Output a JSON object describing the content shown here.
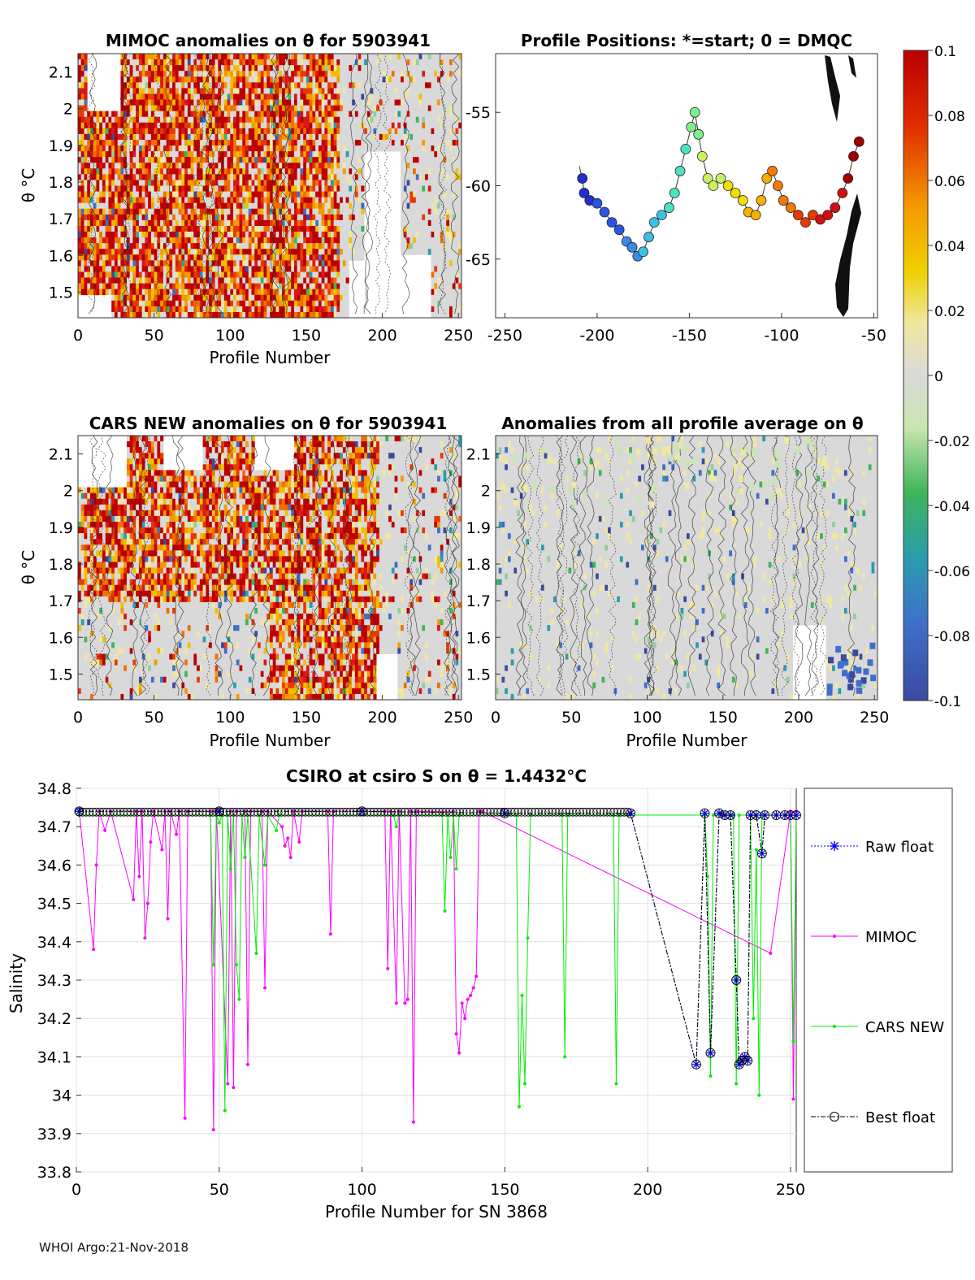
{
  "footer": "WHOI Argo:21-Nov-2018",
  "colors": {
    "magenta": "#ff00ff",
    "green": "#00ee00",
    "blue": "#0000ff",
    "black": "#000000",
    "grid": "#e0e0e0",
    "field_neutral": "#d9d9d9",
    "red": "#c00000"
  },
  "colorbar": {
    "ticks": [
      "0.1",
      "0.08",
      "0.06",
      "0.04",
      "0.02",
      "0",
      "-0.02",
      "-0.04",
      "-0.06",
      "-0.08",
      "-0.1"
    ],
    "range": [
      -0.1,
      0.1
    ]
  },
  "chart_data": [
    {
      "id": "mimoc",
      "type": "heatmap",
      "title": "MIMOC anomalies on θ  for 5903941",
      "xlabel": "Profile Number",
      "ylabel": "θ °C",
      "xlim": [
        0,
        252
      ],
      "ylim": [
        1.43,
        2.15
      ],
      "xticks": [
        "0",
        "50",
        "100",
        "150",
        "200",
        "250"
      ],
      "yticks": [
        "1.5",
        "1.6",
        "1.7",
        "1.8",
        "1.9",
        "2",
        "2.1"
      ]
    },
    {
      "id": "positions",
      "type": "scatter",
      "title": "Profile Positions: *=start; 0 = DMQC",
      "xlim": [
        -255,
        -48
      ],
      "ylim": [
        -69,
        -51
      ],
      "xticks": [
        "-250",
        "-200",
        "-150",
        "-100",
        "-50"
      ],
      "yticks": [
        "-55",
        "-60",
        "-65"
      ],
      "track": [
        [
          -210,
          -58.5
        ],
        [
          -208,
          -59.5
        ],
        [
          -207,
          -60.5
        ],
        [
          -204,
          -61
        ],
        [
          -200,
          -61.2
        ],
        [
          -196,
          -61.8
        ],
        [
          -192,
          -62.5
        ],
        [
          -188,
          -63
        ],
        [
          -184,
          -63.8
        ],
        [
          -181,
          -64.2
        ],
        [
          -178,
          -64.8
        ],
        [
          -175,
          -64.5
        ],
        [
          -172,
          -63.5
        ],
        [
          -169,
          -62.5
        ],
        [
          -165,
          -62
        ],
        [
          -161,
          -61.5
        ],
        [
          -158,
          -60.5
        ],
        [
          -155,
          -59
        ],
        [
          -152,
          -57.5
        ],
        [
          -149,
          -56
        ],
        [
          -147,
          -55
        ],
        [
          -145,
          -56.5
        ],
        [
          -143,
          -58
        ],
        [
          -140,
          -59.5
        ],
        [
          -137,
          -60
        ],
        [
          -133,
          -59.5
        ],
        [
          -129,
          -60
        ],
        [
          -125,
          -60.5
        ],
        [
          -121,
          -61
        ],
        [
          -118,
          -61.8
        ],
        [
          -114,
          -62
        ],
        [
          -111,
          -61
        ],
        [
          -108,
          -59.5
        ],
        [
          -105,
          -59
        ],
        [
          -102,
          -60
        ],
        [
          -99,
          -61
        ],
        [
          -95,
          -61.5
        ],
        [
          -91,
          -62
        ],
        [
          -87,
          -62.5
        ],
        [
          -83,
          -62
        ],
        [
          -79,
          -62.3
        ],
        [
          -75,
          -62
        ],
        [
          -71,
          -61.5
        ],
        [
          -67,
          -60.5
        ],
        [
          -64,
          -59.5
        ],
        [
          -61,
          -58
        ],
        [
          -58,
          -57
        ]
      ]
    },
    {
      "id": "cars",
      "type": "heatmap",
      "title": "CARS NEW anomalies on θ for 5903941",
      "xlabel": "Profile Number",
      "ylabel": "θ °C",
      "xlim": [
        0,
        252
      ],
      "ylim": [
        1.43,
        2.15
      ],
      "xticks": [
        "0",
        "50",
        "100",
        "150",
        "200",
        "250"
      ],
      "yticks": [
        "1.5",
        "1.6",
        "1.7",
        "1.8",
        "1.9",
        "2",
        "2.1"
      ]
    },
    {
      "id": "avg",
      "type": "heatmap",
      "title": "Anomalies from all profile average on θ",
      "xlabel": "Profile Number",
      "xlim": [
        0,
        252
      ],
      "ylim": [
        1.43,
        2.15
      ],
      "xticks": [
        "0",
        "50",
        "100",
        "150",
        "200",
        "250"
      ],
      "yticks": [
        "1.5",
        "1.6",
        "1.7",
        "1.8",
        "1.9",
        "2",
        "2.1"
      ]
    },
    {
      "id": "salinity",
      "type": "line",
      "title": "CSIRO at csiro S on θ = 1.4432°C",
      "xlabel": "Profile Number for SN 3868",
      "ylabel": "Salinity",
      "xlim": [
        0,
        252
      ],
      "ylim": [
        33.8,
        34.8
      ],
      "xticks": [
        "0",
        "50",
        "100",
        "150",
        "200",
        "250"
      ],
      "yticks": [
        "34.8",
        "34.7",
        "34.6",
        "34.5",
        "34.4",
        "34.3",
        "34.2",
        "34.1",
        "34",
        "33.9",
        "33.8"
      ],
      "legend": [
        "Raw float",
        "MIMOC",
        "CARS NEW",
        "Best float"
      ],
      "legend_position": "right",
      "grid": true,
      "series": [
        {
          "name": "MIMOC",
          "points": [
            [
              1,
              34.74
            ],
            [
              6,
              34.38
            ],
            [
              7,
              34.6
            ],
            [
              8,
              34.74
            ],
            [
              10,
              34.69
            ],
            [
              12,
              34.74
            ],
            [
              20,
              34.51
            ],
            [
              21,
              34.74
            ],
            [
              22,
              34.57
            ],
            [
              23,
              34.74
            ],
            [
              24,
              34.41
            ],
            [
              25,
              34.5
            ],
            [
              26,
              34.66
            ],
            [
              27,
              34.74
            ],
            [
              30,
              34.64
            ],
            [
              31,
              34.74
            ],
            [
              32,
              34.46
            ],
            [
              33,
              34.74
            ],
            [
              35,
              34.68
            ],
            [
              36,
              34.74
            ],
            [
              38,
              33.94
            ],
            [
              39,
              34.74
            ],
            [
              47,
              34.74
            ],
            [
              48,
              33.91
            ],
            [
              49,
              34.74
            ],
            [
              53,
              34.03
            ],
            [
              54,
              34.74
            ],
            [
              55,
              34.02
            ],
            [
              56,
              34.74
            ],
            [
              59,
              34.74
            ],
            [
              60,
              34.08
            ],
            [
              61,
              34.74
            ],
            [
              65,
              34.74
            ],
            [
              66,
              34.28
            ],
            [
              67,
              34.74
            ],
            [
              72,
              34.7
            ],
            [
              73,
              34.65
            ],
            [
              74,
              34.67
            ],
            [
              75,
              34.62
            ],
            [
              76,
              34.74
            ],
            [
              78,
              34.66
            ],
            [
              79,
              34.74
            ],
            [
              88,
              34.74
            ],
            [
              89,
              34.42
            ],
            [
              90,
              34.74
            ],
            [
              108,
              34.74
            ],
            [
              109,
              34.33
            ],
            [
              110,
              34.74
            ],
            [
              112,
              34.24
            ],
            [
              113,
              34.74
            ],
            [
              115,
              34.24
            ],
            [
              116,
              34.25
            ],
            [
              117,
              34.74
            ],
            [
              118,
              33.93
            ],
            [
              119,
              34.74
            ],
            [
              132,
              34.74
            ],
            [
              133,
              34.16
            ],
            [
              134,
              34.11
            ],
            [
              135,
              34.24
            ],
            [
              136,
              34.2
            ],
            [
              137,
              34.25
            ],
            [
              138,
              34.26
            ],
            [
              139,
              34.28
            ],
            [
              140,
              34.31
            ],
            [
              141,
              34.74
            ],
            [
              142,
              34.74
            ],
            [
              243,
              34.37
            ],
            [
              250,
              34.74
            ],
            [
              251,
              33.99
            ],
            [
              252,
              34.74
            ]
          ]
        },
        {
          "name": "CARS NEW",
          "points": [
            [
              1,
              34.73
            ],
            [
              47,
              34.73
            ],
            [
              48,
              34.34
            ],
            [
              49,
              34.73
            ],
            [
              50,
              34.71
            ],
            [
              51,
              34.73
            ],
            [
              52,
              33.96
            ],
            [
              53,
              34.73
            ],
            [
              54,
              34.59
            ],
            [
              55,
              34.73
            ],
            [
              56,
              34.34
            ],
            [
              57,
              34.25
            ],
            [
              58,
              34.73
            ],
            [
              59,
              34.62
            ],
            [
              60,
              34.73
            ],
            [
              63,
              34.37
            ],
            [
              64,
              34.73
            ],
            [
              66,
              34.6
            ],
            [
              67,
              34.73
            ],
            [
              70,
              34.69
            ],
            [
              71,
              34.73
            ],
            [
              111,
              34.73
            ],
            [
              112,
              34.7
            ],
            [
              113,
              34.73
            ],
            [
              128,
              34.73
            ],
            [
              129,
              34.48
            ],
            [
              130,
              34.73
            ],
            [
              131,
              34.62
            ],
            [
              132,
              34.73
            ],
            [
              133,
              34.59
            ],
            [
              134,
              34.73
            ],
            [
              154,
              34.73
            ],
            [
              155,
              33.97
            ],
            [
              156,
              34.26
            ],
            [
              157,
              34.03
            ],
            [
              158,
              34.41
            ],
            [
              159,
              34.73
            ],
            [
              170,
              34.73
            ],
            [
              171,
              34.1
            ],
            [
              172,
              34.73
            ],
            [
              188,
              34.73
            ],
            [
              189,
              34.03
            ],
            [
              190,
              34.73
            ],
            [
              220,
              34.73
            ],
            [
              221,
              34.57
            ],
            [
              222,
              34.05
            ],
            [
              223,
              34.73
            ],
            [
              230,
              34.73
            ],
            [
              231,
              34.03
            ],
            [
              232,
              34.73
            ],
            [
              236,
              34.73
            ],
            [
              237,
              34.2
            ],
            [
              238,
              34.64
            ],
            [
              239,
              34.0
            ],
            [
              240,
              34.73
            ],
            [
              250,
              34.73
            ],
            [
              251,
              34.14
            ],
            [
              252,
              34.73
            ]
          ]
        },
        {
          "name": "Raw float",
          "points": [
            [
              1,
              34.74
            ],
            [
              50,
              34.74
            ],
            [
              100,
              34.74
            ],
            [
              150,
              34.735
            ],
            [
              194,
              34.735
            ],
            [
              217,
              34.08
            ],
            [
              220,
              34.735
            ],
            [
              222,
              34.11
            ],
            [
              225,
              34.735
            ],
            [
              227,
              34.73
            ],
            [
              229,
              34.73
            ],
            [
              231,
              34.3
            ],
            [
              232,
              34.08
            ],
            [
              233,
              34.09
            ],
            [
              234,
              34.1
            ],
            [
              235,
              34.09
            ],
            [
              236,
              34.73
            ],
            [
              238,
              34.73
            ],
            [
              240,
              34.63
            ],
            [
              241,
              34.73
            ],
            [
              245,
              34.73
            ],
            [
              248,
              34.73
            ],
            [
              250,
              34.73
            ],
            [
              252,
              34.73
            ]
          ]
        },
        {
          "name": "Best float",
          "points": [
            [
              1,
              34.74
            ],
            [
              50,
              34.74
            ],
            [
              100,
              34.74
            ],
            [
              150,
              34.735
            ],
            [
              194,
              34.735
            ],
            [
              217,
              34.08
            ],
            [
              220,
              34.735
            ],
            [
              222,
              34.11
            ],
            [
              225,
              34.735
            ],
            [
              227,
              34.73
            ],
            [
              229,
              34.73
            ],
            [
              231,
              34.3
            ],
            [
              232,
              34.08
            ],
            [
              233,
              34.09
            ],
            [
              234,
              34.1
            ],
            [
              235,
              34.09
            ],
            [
              236,
              34.73
            ],
            [
              238,
              34.73
            ],
            [
              240,
              34.63
            ],
            [
              241,
              34.73
            ],
            [
              245,
              34.73
            ],
            [
              248,
              34.73
            ],
            [
              250,
              34.73
            ],
            [
              252,
              34.73
            ]
          ]
        }
      ]
    }
  ]
}
